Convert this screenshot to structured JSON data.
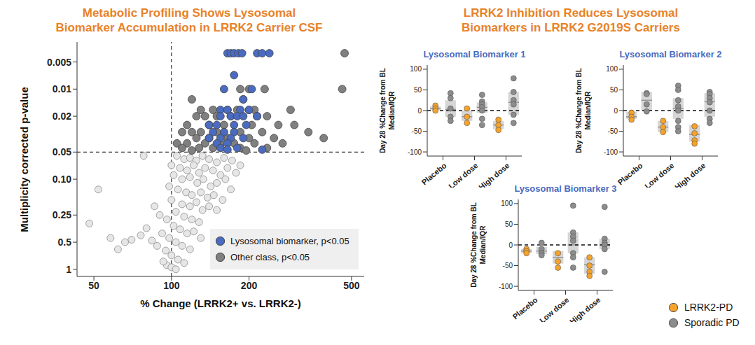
{
  "chart_data": [
    {
      "type": "scatter",
      "title": [
        "Metabolic Profiling Shows Lysosomal",
        "Biomarker Accumulation in LRRK2 Carrier CSF"
      ],
      "x_label": "% Change (LRRK2+ vs. LRRK2-)",
      "y_label": "Multiplicity corrected p-value",
      "log": true,
      "xlim": [
        43,
        560
      ],
      "xticks": [
        50,
        100,
        200,
        500
      ],
      "ylim": [
        0.003,
        1.2
      ],
      "yticks": [
        0.005,
        0.01,
        0.02,
        0.05,
        {
          "value": 0.1,
          "label": "0.10"
        },
        0.25,
        0.5,
        1
      ],
      "vline": 100,
      "hline": 0.05,
      "legend": "lower right",
      "series": [
        {
          "name": "Lysosomal biomarker, p<0.05",
          "color": "#4a6bbf",
          "x": [
            165,
            170,
            175,
            182,
            188,
            215,
            225,
            240,
            175,
            160,
            205,
            190,
            155,
            165,
            185,
            200,
            155,
            170,
            180,
            190,
            215,
            140,
            150,
            175,
            195,
            145,
            160,
            175,
            140,
            155,
            170,
            190,
            150,
            165,
            155,
            180,
            165,
            225
          ],
          "y": [
            0.004,
            0.004,
            0.004,
            0.004,
            0.004,
            0.004,
            0.004,
            0.004,
            0.007,
            0.01,
            0.01,
            0.013,
            0.017,
            0.017,
            0.017,
            0.017,
            0.02,
            0.02,
            0.02,
            0.02,
            0.02,
            0.025,
            0.025,
            0.025,
            0.025,
            0.03,
            0.03,
            0.03,
            0.035,
            0.035,
            0.035,
            0.035,
            0.04,
            0.04,
            0.045,
            0.045,
            0.047,
            0.047
          ]
        },
        {
          "name": "Other class, p<0.05",
          "color": "#808080",
          "x": [
            470,
            185,
            200,
            230,
            460,
            120,
            190,
            130,
            145,
            165,
            180,
            200,
            210,
            290,
            125,
            135,
            150,
            170,
            215,
            235,
            115,
            140,
            160,
            205,
            260,
            300,
            110,
            120,
            130,
            150,
            185,
            225,
            340,
            125,
            140,
            165,
            200,
            250,
            390,
            105,
            115,
            135,
            155,
            175,
            210,
            270,
            110,
            128,
            145,
            185,
            235,
            120,
            195
          ],
          "y": [
            0.004,
            0.01,
            0.01,
            0.01,
            0.01,
            0.013,
            0.013,
            0.017,
            0.017,
            0.017,
            0.017,
            0.017,
            0.017,
            0.017,
            0.02,
            0.02,
            0.02,
            0.02,
            0.02,
            0.02,
            0.025,
            0.025,
            0.025,
            0.025,
            0.025,
            0.025,
            0.03,
            0.03,
            0.03,
            0.03,
            0.03,
            0.03,
            0.03,
            0.035,
            0.035,
            0.035,
            0.035,
            0.035,
            0.035,
            0.04,
            0.04,
            0.04,
            0.04,
            0.04,
            0.04,
            0.04,
            0.045,
            0.045,
            0.045,
            0.045,
            0.045,
            0.048,
            0.048
          ]
        },
        {
          "color": "#e6e6e6",
          "x": [
            105,
            112,
            118,
            125,
            132,
            140,
            150,
            160,
            172,
            185,
            100,
            108,
            115,
            122,
            128,
            135,
            145,
            155,
            165,
            178,
            102,
            110,
            118,
            126,
            133,
            142,
            150,
            162,
            170,
            98,
            106,
            114,
            120,
            130,
            138,
            146,
            158,
            100,
            110,
            118,
            125,
            132,
            140,
            150,
            104,
            112,
            120,
            128,
            96,
            102,
            108,
            115,
            122,
            130,
            92,
            98,
            104,
            110,
            118,
            95,
            100,
            106,
            112,
            96,
            100,
            104,
            93,
            88,
            84,
            80,
            76,
            70,
            66,
            62,
            58,
            52,
            48,
            78,
            90,
            86
          ],
          "y": [
            0.055,
            0.06,
            0.058,
            0.062,
            0.055,
            0.06,
            0.065,
            0.058,
            0.062,
            0.07,
            0.07,
            0.075,
            0.08,
            0.07,
            0.085,
            0.075,
            0.08,
            0.09,
            0.075,
            0.085,
            0.09,
            0.1,
            0.095,
            0.11,
            0.1,
            0.12,
            0.11,
            0.1,
            0.13,
            0.12,
            0.13,
            0.14,
            0.15,
            0.14,
            0.16,
            0.15,
            0.17,
            0.17,
            0.19,
            0.2,
            0.18,
            0.22,
            0.2,
            0.22,
            0.23,
            0.26,
            0.28,
            0.3,
            0.28,
            0.33,
            0.36,
            0.4,
            0.38,
            0.45,
            0.4,
            0.45,
            0.5,
            0.55,
            0.6,
            0.62,
            0.7,
            0.78,
            0.85,
            0.9,
            0.95,
            1,
            0.82,
            0.55,
            0.48,
            0.35,
            0.42,
            0.47,
            0.5,
            0.6,
            0.45,
            0.13,
            0.31,
            0.055,
            0.25,
            0.2
          ]
        }
      ]
    },
    {
      "type": "box",
      "title": [
        "LRRK2 Inhibition Reduces Lysosomal",
        "Biomarkers in LRRK2 G2019S Carriers"
      ],
      "y_label": [
        "Day 28 %Change from BL",
        "Median/IQR"
      ],
      "categories": [
        "Placebo",
        "Low dose",
        "High dose"
      ],
      "ylim": [
        -110,
        110
      ],
      "yticks": [
        -100,
        -50,
        0,
        50,
        100
      ],
      "reference_y": 0,
      "legend": "lower right",
      "series": [
        {
          "name": "LRRK2-PD",
          "color": "#f5a32a"
        },
        {
          "name": "Sporadic PD",
          "color": "#8c8c8c"
        }
      ],
      "panels": [
        {
          "title": "Lysosomal Biomarker 1",
          "series": [
            {
              "values": [
                [
                  12,
                  5,
                  0
                ],
                [
                  5,
                  -15,
                  -30
                ],
                [
                  -22,
                  -35,
                  -47
                ]
              ],
              "q1": [
                1,
                -25,
                -45
              ],
              "median": [
                5,
                -15,
                -35
              ],
              "q3": [
                10,
                0,
                -25
              ]
            },
            {
              "values": [
                [
                  42,
                  30,
                  5,
                  -15,
                  -25
                ],
                [
                  38,
                  22,
                  15,
                  8,
                  0,
                  -20,
                  -35
                ],
                [
                  78,
                  45,
                  25,
                  15,
                  -10,
                  -30
                ]
              ],
              "q1": [
                -15,
                -5,
                -10
              ],
              "median": [
                3,
                8,
                20
              ],
              "q3": [
                25,
                20,
                45
              ]
            }
          ]
        },
        {
          "title": "Lysosomal Biomarker 2",
          "series": [
            {
              "values": [
                [
                  -5,
                  -15,
                  -22
                ],
                [
                  -25,
                  -40,
                  -52
                ],
                [
                  -38,
                  -55,
                  -72,
                  -80
                ]
              ],
              "q1": [
                -20,
                -52,
                -75
              ],
              "median": [
                -15,
                -40,
                -58
              ],
              "q3": [
                -3,
                -25,
                -35
              ]
            },
            {
              "values": [
                [
                  42,
                  40,
                  15,
                  -2
                ],
                [
                  60,
                  50,
                  25,
                  10,
                  0,
                  -25,
                  -40,
                  -50
                ],
                [
                  45,
                  40,
                  30,
                  20,
                  0,
                  -20,
                  -30
                ]
              ],
              "q1": [
                0,
                -20,
                -15
              ],
              "median": [
                25,
                5,
                22
              ],
              "q3": [
                45,
                30,
                42
              ]
            }
          ]
        },
        {
          "title": "Lysosomal Biomarker 3",
          "series": [
            {
              "values": [
                [
                  -10,
                  -15,
                  -20
                ],
                [
                  -20,
                  -40,
                  -55
                ],
                [
                  -30,
                  -50,
                  -65,
                  -75
                ]
              ],
              "q1": [
                -20,
                -45,
                -70
              ],
              "median": [
                -15,
                -30,
                -48
              ],
              "q3": [
                -10,
                -15,
                -30
              ]
            },
            {
              "values": [
                [
                  5,
                  -10,
                  -20,
                  -25
                ],
                [
                  95,
                  30,
                  20,
                  10,
                  -20,
                  -30,
                  -55
                ],
                [
                  92,
                  15,
                  5,
                  0,
                  -10,
                  -65
                ]
              ],
              "q1": [
                -22,
                -20,
                -10
              ],
              "median": [
                -15,
                0,
                0
              ],
              "q3": [
                -5,
                30,
                15
              ]
            }
          ]
        }
      ]
    }
  ]
}
